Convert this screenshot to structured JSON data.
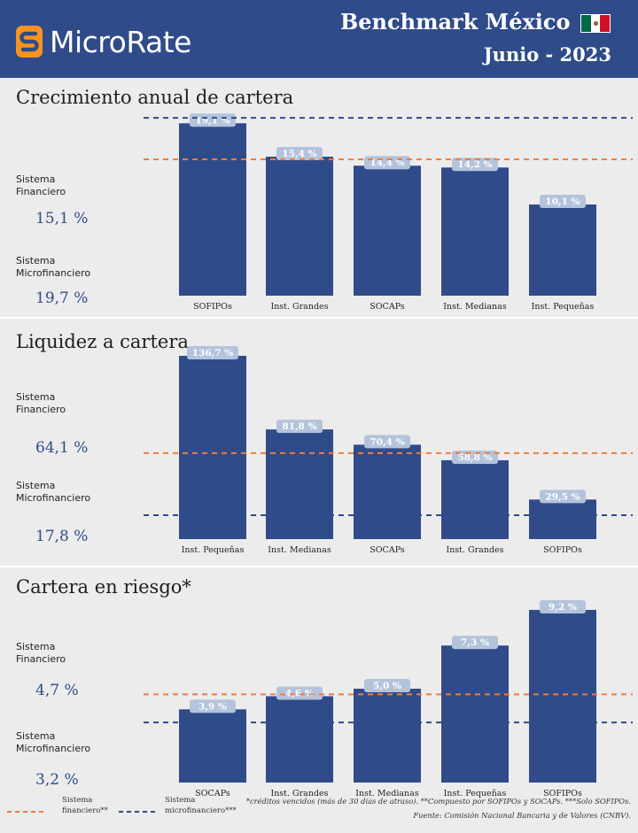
{
  "header": {
    "brand": "MicroRate",
    "title": "Benchmark México",
    "date": "Junio - 2023",
    "colors": {
      "background": "#2f4b8a",
      "logo_orange": "#f7941d",
      "flag_green": "#006847",
      "flag_red": "#ce1126"
    }
  },
  "colors": {
    "bar": "#2f4b8a",
    "label_bg": "#b4c3dc",
    "orange_line": "#f07d3c",
    "blue_line": "#2f4b8a"
  },
  "sections": [
    {
      "title": "Crecimiento anual de cartera",
      "financiero_label": "Sistema\nFinanciero",
      "financiero_value": "15,1 %",
      "micro_label": "Sistema\nMicrofinanciero",
      "micro_value": "19,7 %"
    },
    {
      "title": "Liquidez a cartera",
      "financiero_label": "Sistema\nFinanciero",
      "financiero_value": "64,1 %",
      "micro_label": "Sistema\nMicrofinanciero",
      "micro_value": "17,8 %"
    },
    {
      "title": "Cartera en riesgo*",
      "financiero_label": "Sistema\nFinanciero",
      "financiero_value": "4,7 %",
      "micro_label": "Sistema\nMicrofinanciero",
      "micro_value": "3,2 %"
    }
  ],
  "chart_data": [
    {
      "type": "bar",
      "title": "Crecimiento anual de cartera",
      "categories": [
        "SOFIPOs",
        "Inst. Grandes",
        "SOCAPs",
        "Inst. Medianas",
        "Inst. Pequeñas"
      ],
      "values": [
        19.1,
        15.4,
        14.4,
        14.2,
        10.1
      ],
      "labels": [
        "19,1 %",
        "15,4 %",
        "14,4 %",
        "14,2 %",
        "10,1 %"
      ],
      "reference_lines": [
        {
          "name": "Sistema financiero",
          "value": 15.1,
          "style": "orange-dashed"
        },
        {
          "name": "Sistema microfinanciero",
          "value": 19.7,
          "style": "blue-dashed"
        }
      ],
      "ylim": [
        0,
        20.5
      ]
    },
    {
      "type": "bar",
      "title": "Liquidez a cartera",
      "categories": [
        "Inst. Pequeñas",
        "Inst. Medianas",
        "SOCAPs",
        "Inst. Grandes",
        "SOFIPOs"
      ],
      "values": [
        136.7,
        81.8,
        70.4,
        58.8,
        29.5
      ],
      "labels": [
        "136,7 %",
        "81,8 %",
        "70,4 %",
        "58,8 %",
        "29,5 %"
      ],
      "reference_lines": [
        {
          "name": "Sistema financiero",
          "value": 64.1,
          "style": "orange-dashed"
        },
        {
          "name": "Sistema microfinanciero",
          "value": 17.8,
          "style": "blue-dashed"
        }
      ],
      "ylim": [
        0,
        138
      ]
    },
    {
      "type": "bar",
      "title": "Cartera en riesgo*",
      "categories": [
        "SOCAPs",
        "Inst. Grandes",
        "Inst. Medianas",
        "Inst. Pequeñas",
        "SOFIPOs"
      ],
      "values": [
        3.9,
        4.6,
        5.0,
        7.3,
        9.2
      ],
      "labels": [
        "3,9 %",
        "4,6 %",
        "5,0 %",
        "7,3 %",
        "9,2 %"
      ],
      "reference_lines": [
        {
          "name": "Sistema financiero",
          "value": 4.7,
          "style": "orange-dashed"
        },
        {
          "name": "Sistema microfinanciero",
          "value": 3.2,
          "style": "blue-dashed"
        }
      ],
      "ylim": [
        0,
        10
      ]
    }
  ],
  "legend": {
    "financiero": "Sistema\nfinanciero**",
    "micro": "Sistema\nmicrofinanciero***"
  },
  "footnotes": {
    "line1": "*créditos vencidos (más de 30 días de atraso). **Compuesto por SOFIPOs y SOCAPs. ***Solo SOFIPOs.",
    "line2": "Fuente: Comisión Nacional Bancaria y de Valores (CNBV)."
  }
}
